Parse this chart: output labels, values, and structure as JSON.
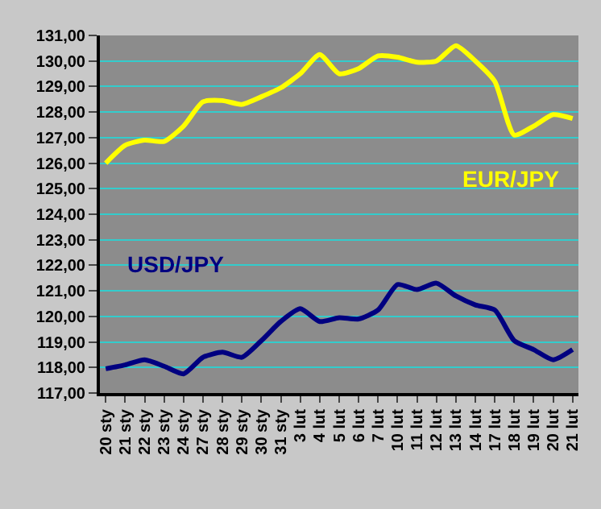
{
  "chart_data": {
    "type": "line",
    "categories": [
      "20 sty",
      "21 sty",
      "22 sty",
      "23 sty",
      "24 sty",
      "27 sty",
      "28 sty",
      "29 sty",
      "30 sty",
      "31 sty",
      "3 lut",
      "4 lut",
      "5 lut",
      "6 lut",
      "7 lut",
      "10 lut",
      "11 lut",
      "12 lut",
      "13 lut",
      "14 lut",
      "17 lut",
      "18 lut",
      "19 lut",
      "20 lut",
      "21 lut"
    ],
    "series": [
      {
        "name": "EUR/JPY",
        "color": "#ffff00",
        "values": [
          126.0,
          126.7,
          126.9,
          126.85,
          127.45,
          128.4,
          128.45,
          128.3,
          128.6,
          128.95,
          129.5,
          130.25,
          129.5,
          129.7,
          130.2,
          130.15,
          129.95,
          130.0,
          130.6,
          130.0,
          129.2,
          127.1,
          127.45,
          127.9,
          127.75
        ]
      },
      {
        "name": "USD/JPY",
        "color": "#000080",
        "values": [
          117.95,
          118.1,
          118.3,
          118.05,
          117.75,
          118.4,
          118.6,
          118.4,
          119.05,
          119.8,
          120.3,
          119.8,
          119.95,
          119.9,
          120.25,
          121.25,
          121.05,
          121.3,
          120.8,
          120.45,
          120.25,
          119.05,
          118.7,
          118.3,
          118.7
        ]
      }
    ],
    "ylim": [
      117,
      131
    ],
    "yticks": [
      {
        "value": 117,
        "label": "117,00"
      },
      {
        "value": 118,
        "label": "118,00"
      },
      {
        "value": 119,
        "label": "119,00"
      },
      {
        "value": 120,
        "label": "120,00"
      },
      {
        "value": 121,
        "label": "121,00"
      },
      {
        "value": 122,
        "label": "122,00"
      },
      {
        "value": 123,
        "label": "123,00"
      },
      {
        "value": 124,
        "label": "124,00"
      },
      {
        "value": 125,
        "label": "125,00"
      },
      {
        "value": 126,
        "label": "126,00"
      },
      {
        "value": 127,
        "label": "127,00"
      },
      {
        "value": 128,
        "label": "128,00"
      },
      {
        "value": 129,
        "label": "129,00"
      },
      {
        "value": 130,
        "label": "130,00"
      },
      {
        "value": 131,
        "label": "131,00"
      }
    ],
    "grid": "y",
    "legend": false,
    "marker": "none",
    "line_style": "solid"
  }
}
